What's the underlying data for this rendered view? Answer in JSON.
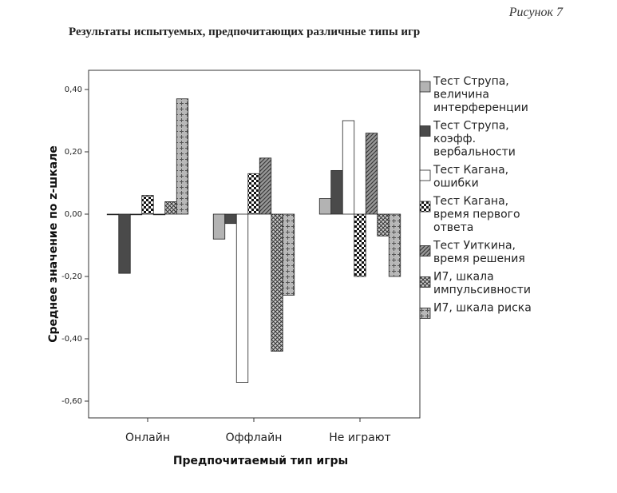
{
  "figure": {
    "label": "Рисунок 7",
    "title": "Результаты испытуемых, предпочитающих различные типы игр"
  },
  "chart_data": {
    "type": "bar",
    "xlabel": "Предпочитаемый тип игры",
    "ylabel": "Среднее значение по z-шкале",
    "ylim": [
      -0.65,
      0.45
    ],
    "yticks": [
      -0.6,
      -0.4,
      -0.2,
      0.0,
      0.2,
      0.4
    ],
    "ytick_labels": [
      "-0,60",
      "-0,40",
      "-0,20",
      "0,00",
      "0,20",
      "0,40"
    ],
    "categories": [
      "Онлайн",
      "Оффлайн",
      "Не играют"
    ],
    "legend_position": "right",
    "grid": false,
    "series": [
      {
        "name": [
          "Тест Струпа,",
          "величина",
          "интерференции"
        ],
        "pattern": "gray",
        "values": [
          0.0,
          -0.08,
          0.05
        ]
      },
      {
        "name": [
          "Тест Струпа,",
          "коэфф.",
          "вербальности"
        ],
        "pattern": "dark",
        "values": [
          -0.19,
          -0.03,
          0.14
        ]
      },
      {
        "name": [
          "Тест Кагана,",
          "ошибки"
        ],
        "pattern": "white",
        "values": [
          0.0,
          -0.54,
          0.3
        ]
      },
      {
        "name": [
          "Тест Кагана,",
          "время первого",
          "ответа"
        ],
        "pattern": "checker",
        "values": [
          0.06,
          0.13,
          -0.2
        ]
      },
      {
        "name": [
          "Тест Уиткина,",
          "время решения"
        ],
        "pattern": "diagonal",
        "values": [
          0.0,
          0.18,
          0.26
        ]
      },
      {
        "name": [
          "И7, шкала",
          "импульсивности"
        ],
        "pattern": "crosshatch",
        "values": [
          0.04,
          -0.44,
          -0.07
        ]
      },
      {
        "name": [
          "И7, шкала риска"
        ],
        "pattern": "plus",
        "values": [
          0.37,
          -0.26,
          -0.2
        ]
      }
    ]
  }
}
